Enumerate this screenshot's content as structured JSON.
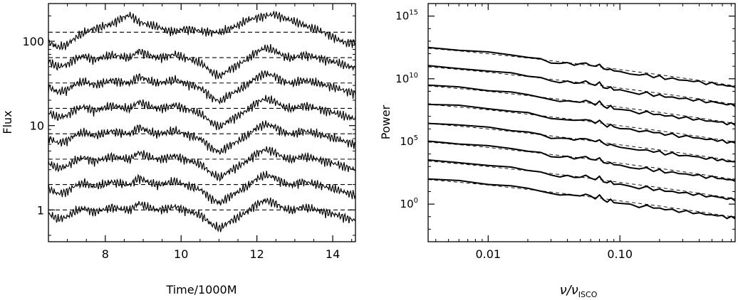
{
  "chart_data": [
    {
      "type": "line",
      "xlabel": "Time/1000M",
      "ylabel": "Flux",
      "yscale": "log",
      "xlim": [
        6.5,
        14.6
      ],
      "ylim": [
        0.42,
        280
      ],
      "xticks": [
        "8",
        "10",
        "12",
        "14"
      ],
      "xtick_values": [
        8,
        10,
        12,
        14
      ],
      "yticks": [
        "1",
        "10",
        "100"
      ],
      "ytick_values": [
        1,
        10,
        100
      ],
      "reference_levels": [
        1,
        2,
        4,
        8,
        16,
        32,
        64,
        128
      ],
      "series": [
        {
          "level": 1,
          "values": [
            0.9,
            0.78,
            0.82,
            0.97,
            1.05,
            0.94,
            1.0,
            1.08,
            1.03,
            0.99,
            1.2,
            1.08,
            1.0,
            1.03,
            1.1,
            1.0,
            0.93,
            0.85,
            0.68,
            0.6,
            0.72,
            0.82,
            0.95,
            1.16,
            1.3,
            1.22,
            1.05,
            0.98,
            1.08,
            1.05,
            0.98,
            0.92,
            0.87,
            0.8,
            0.75
          ]
        },
        {
          "level": 2,
          "values": [
            1.8,
            1.56,
            1.64,
            1.94,
            2.1,
            1.88,
            2.0,
            2.16,
            2.06,
            1.98,
            2.4,
            2.16,
            2.0,
            2.06,
            2.2,
            2.0,
            1.86,
            1.7,
            1.36,
            1.2,
            1.44,
            1.64,
            1.9,
            2.32,
            2.6,
            2.44,
            2.1,
            1.96,
            2.16,
            2.1,
            1.96,
            1.84,
            1.74,
            1.6,
            1.5
          ]
        },
        {
          "level": 4,
          "values": [
            3.6,
            3.12,
            3.28,
            3.88,
            4.2,
            3.76,
            4.0,
            4.32,
            4.12,
            3.96,
            4.8,
            4.32,
            4.0,
            4.12,
            4.4,
            4.0,
            3.72,
            3.4,
            2.72,
            2.4,
            2.88,
            3.28,
            3.8,
            4.64,
            5.2,
            4.88,
            4.2,
            3.92,
            4.32,
            4.2,
            3.92,
            3.68,
            3.48,
            3.2,
            3.0
          ]
        },
        {
          "level": 8,
          "values": [
            7.2,
            6.24,
            6.56,
            7.76,
            8.4,
            7.52,
            8.0,
            8.64,
            8.24,
            7.92,
            9.6,
            8.64,
            8.0,
            8.24,
            8.8,
            8.0,
            7.44,
            6.8,
            5.44,
            4.8,
            5.76,
            6.56,
            7.6,
            9.28,
            10.4,
            9.76,
            8.4,
            7.84,
            8.64,
            8.4,
            7.84,
            7.36,
            6.96,
            6.4,
            6.0
          ]
        },
        {
          "level": 16,
          "values": [
            14.4,
            12.5,
            13.1,
            15.5,
            16.8,
            15.0,
            16.0,
            17.3,
            16.5,
            15.8,
            19.2,
            17.3,
            16.0,
            16.5,
            17.6,
            16.0,
            14.9,
            13.6,
            10.9,
            9.6,
            11.5,
            13.1,
            15.2,
            18.6,
            20.8,
            19.5,
            16.8,
            15.7,
            17.3,
            16.8,
            15.7,
            14.7,
            13.9,
            12.8,
            12.0
          ]
        },
        {
          "level": 32,
          "values": [
            28.8,
            25.0,
            26.2,
            31.0,
            33.6,
            30.1,
            32.0,
            34.6,
            33.0,
            31.7,
            38.4,
            34.6,
            32.0,
            33.0,
            35.2,
            32.0,
            29.8,
            27.2,
            21.8,
            19.2,
            23.0,
            26.2,
            30.4,
            37.1,
            41.6,
            39.0,
            33.6,
            31.4,
            34.6,
            33.6,
            31.4,
            29.4,
            27.8,
            25.6,
            24.0
          ]
        },
        {
          "level": 64,
          "values": [
            57.6,
            49.9,
            52.5,
            62.1,
            67.2,
            60.2,
            64.0,
            69.1,
            65.9,
            63.4,
            76.8,
            69.1,
            64.0,
            65.9,
            70.4,
            64.0,
            59.5,
            54.4,
            43.5,
            38.4,
            46.1,
            52.5,
            60.8,
            74.2,
            83.2,
            78.1,
            67.2,
            62.7,
            69.1,
            67.2,
            62.7,
            58.9,
            55.7,
            51.2,
            48.0
          ]
        },
        {
          "level": 128,
          "values": [
            98,
            85,
            90,
            110,
            128,
            140,
            150,
            160,
            185,
            205,
            170,
            158,
            150,
            135,
            130,
            140,
            138,
            132,
            128,
            128,
            140,
            155,
            178,
            190,
            200,
            210,
            190,
            175,
            160,
            145,
            135,
            120,
            105,
            95,
            98
          ]
        }
      ]
    },
    {
      "type": "line",
      "xlabel_main": "ν/ν",
      "xlabel_sub": "ISCO",
      "ylabel": "Power",
      "xscale": "log",
      "yscale": "log",
      "xlim": [
        0.0035,
        0.75
      ],
      "ylim": [
        0.001,
        1e+16
      ],
      "xticks": [
        "0.01",
        "0.10"
      ],
      "xtick_values": [
        0.01,
        0.1
      ],
      "yticks": [
        {
          "base": "10",
          "exp": "0",
          "value": 1
        },
        {
          "base": "10",
          "exp": "5",
          "value": 100000.0
        },
        {
          "base": "10",
          "exp": "10",
          "value": 10000000000.0
        },
        {
          "base": "10",
          "exp": "15",
          "value": 1000000000000000.0
        }
      ],
      "spectrum_norms": [
        0.1,
        3,
        100,
        3000,
        100000,
        3000000,
        100000000,
        3000000000
      ],
      "spectrum_shape": {
        "x": [
          0.0035,
          0.006,
          0.01,
          0.015,
          0.02,
          0.025,
          0.03,
          0.035,
          0.04,
          0.045,
          0.05,
          0.055,
          0.06,
          0.065,
          0.07,
          0.075,
          0.08,
          0.085,
          0.09,
          0.1,
          0.12,
          0.14,
          0.16,
          0.18,
          0.2,
          0.22,
          0.25,
          0.28,
          0.32,
          0.36,
          0.4,
          0.45,
          0.5,
          0.55,
          0.6,
          0.65,
          0.7,
          0.75
        ],
        "y": [
          1000,
          700,
          420,
          270,
          180,
          120,
          65,
          55,
          60,
          45,
          50,
          60,
          42,
          30,
          50,
          22,
          16,
          22,
          14,
          12,
          9,
          6,
          8,
          4.5,
          5.5,
          3.2,
          4,
          2.4,
          2.8,
          1.9,
          2.1,
          1.3,
          1.6,
          1.1,
          1.2,
          0.8,
          0.95,
          0.7
        ]
      },
      "model_shape": {
        "x": [
          0.0035,
          0.006,
          0.01,
          0.02,
          0.04,
          0.07,
          0.1,
          0.2,
          0.4,
          0.75
        ],
        "y": [
          900,
          550,
          330,
          150,
          65,
          30,
          18,
          7,
          2.5,
          0.9
        ]
      }
    }
  ]
}
